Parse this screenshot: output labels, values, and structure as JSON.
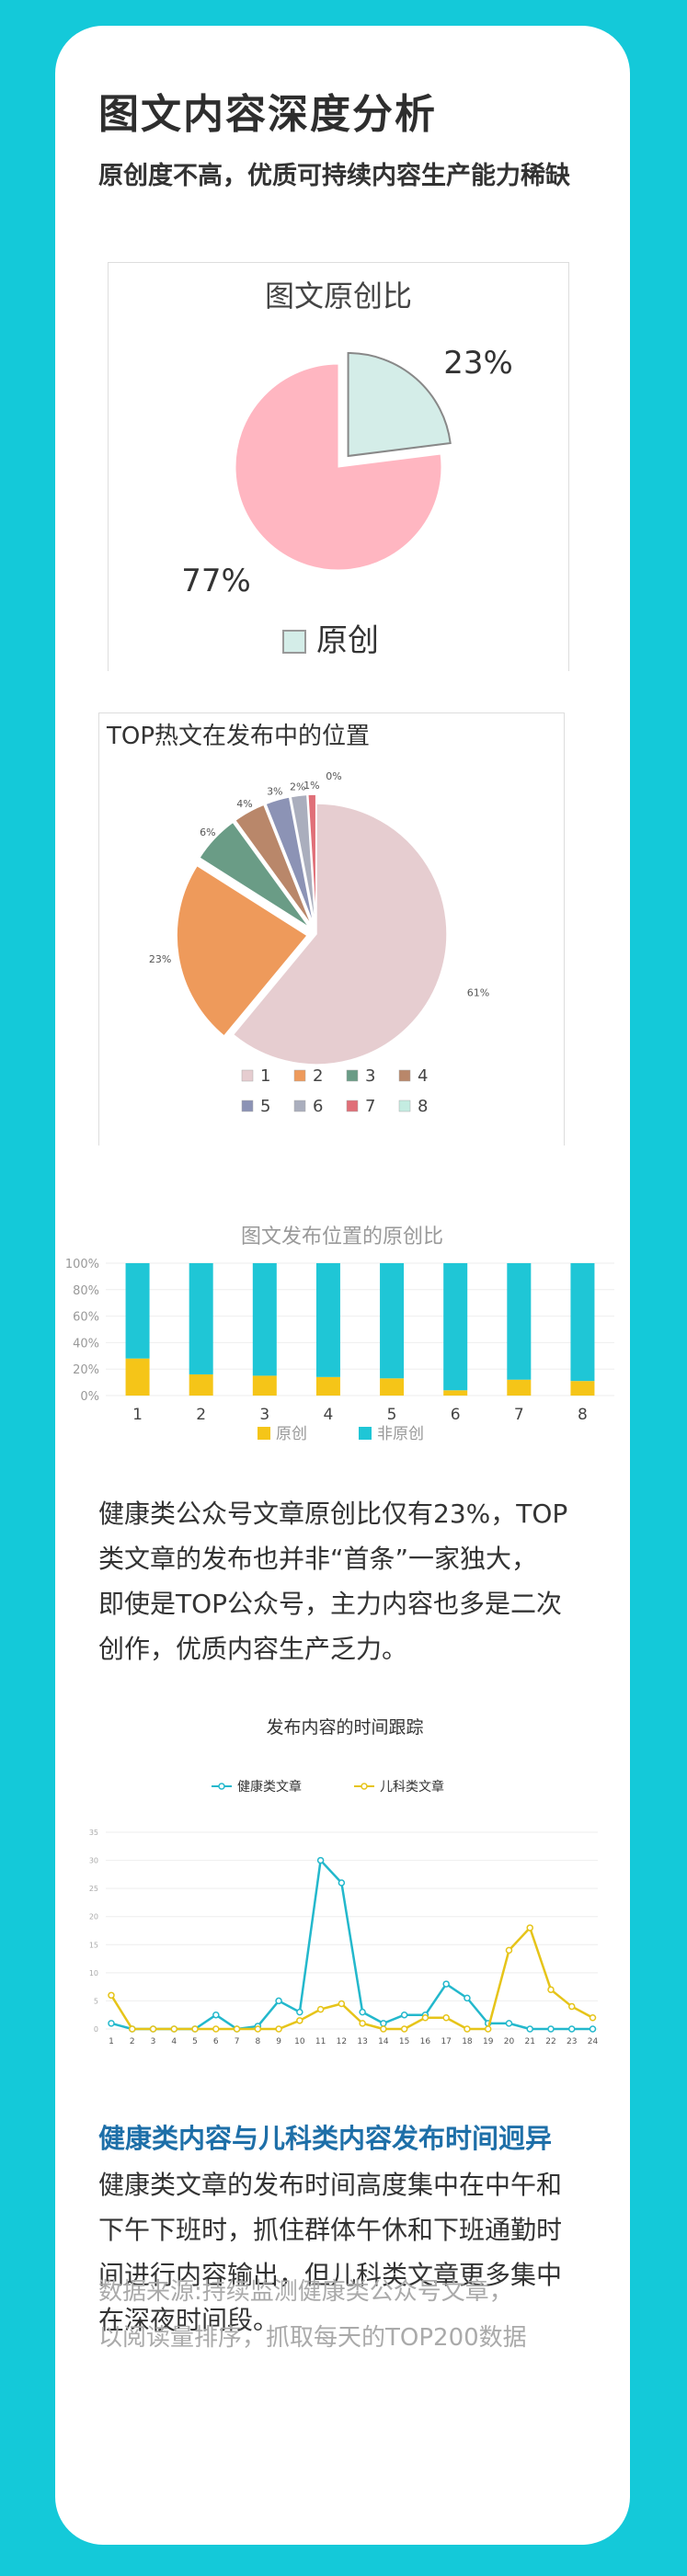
{
  "page": {
    "title": "图文内容深度分析",
    "subtitle": "原创度不高，优质可持续内容生产能力稀缺",
    "paragraph1": [
      "健康类公众号文章原创比仅有23%，TOP",
      "类文章的发布也并非“首条”一家独大，",
      "即使是TOP公众号，主力内容也多是二次",
      "创作，优质内容生产乏力。"
    ],
    "subheading": "健康类内容与儿科类内容发布时间迥异",
    "paragraph2": [
      "健康类文章的发布时间高度集中在中午和",
      "下午下班时，抓住群体午休和下班通勤时",
      "间进行内容输出，但儿科类文章更多集中",
      "在深夜时间段。"
    ],
    "source": [
      "数据来源:持续监测健康类公众号文章，",
      "以阅读量排序，抓取每天的TOP200数据"
    ]
  },
  "colors": {
    "background": "#14c9d9",
    "card": "#ffffff"
  },
  "chart_data": [
    {
      "type": "pie",
      "title": "图文原创比",
      "slices": [
        {
          "label": "原创",
          "value": 23,
          "display": "23%",
          "color": "#d4ede8"
        },
        {
          "label": "",
          "value": 77,
          "display": "77%",
          "color": "#ffb6c1"
        }
      ],
      "legend": [
        "原创"
      ]
    },
    {
      "type": "pie",
      "title": "TOP热文在发布中的位置",
      "slices": [
        {
          "label": "1",
          "value": 61,
          "display": "61%",
          "color": "#e6cdd0"
        },
        {
          "label": "2",
          "value": 23,
          "display": "23%",
          "color": "#ee9a5b"
        },
        {
          "label": "3",
          "value": 6,
          "display": "6%",
          "color": "#6a9c86"
        },
        {
          "label": "4",
          "value": 4,
          "display": "4%",
          "color": "#b9876a"
        },
        {
          "label": "5",
          "value": 3,
          "display": "3%",
          "color": "#8c93b5"
        },
        {
          "label": "6",
          "value": 2,
          "display": "2%",
          "color": "#aaaebd"
        },
        {
          "label": "7",
          "value": 1,
          "display": "1%",
          "color": "#e06f78"
        },
        {
          "label": "8",
          "value": 0,
          "display": "0%",
          "color": "#c4ece1"
        }
      ],
      "legend": [
        "1",
        "2",
        "3",
        "4",
        "5",
        "6",
        "7",
        "8"
      ]
    },
    {
      "type": "bar",
      "stacked": true,
      "title": "图文发布位置的原创比",
      "categories": [
        "1",
        "2",
        "3",
        "4",
        "5",
        "6",
        "7",
        "8"
      ],
      "yticks": [
        "0%",
        "20%",
        "40%",
        "60%",
        "80%",
        "100%"
      ],
      "ylim": [
        0,
        100
      ],
      "series": [
        {
          "name": "原创",
          "color": "#f5c518",
          "values": [
            28,
            16,
            15,
            14,
            13,
            4,
            12,
            11
          ]
        },
        {
          "name": "非原创",
          "color": "#1fc6d6",
          "values": [
            72,
            84,
            85,
            86,
            87,
            96,
            88,
            89
          ]
        }
      ],
      "legend": [
        "原创",
        "非原创"
      ]
    },
    {
      "type": "line",
      "title": "发布内容的时间跟踪",
      "x": [
        1,
        2,
        3,
        4,
        5,
        6,
        7,
        8,
        9,
        10,
        11,
        12,
        13,
        14,
        15,
        16,
        17,
        18,
        19,
        20,
        21,
        22,
        23,
        24
      ],
      "yticks": [
        "0",
        "5",
        "10",
        "15",
        "20",
        "25",
        "30",
        "35"
      ],
      "ylim": [
        0,
        35
      ],
      "series": [
        {
          "name": "健康类文章",
          "color": "#23b8cc",
          "values": [
            1,
            0,
            0,
            0,
            0,
            2.5,
            0,
            0.5,
            5,
            3,
            30,
            26,
            3,
            1,
            2.5,
            2.5,
            8,
            5.5,
            1,
            1,
            0,
            0,
            0,
            0
          ]
        },
        {
          "name": "儿科类文章",
          "color": "#e6c419",
          "values": [
            6,
            0,
            0,
            0,
            0,
            0,
            0,
            0,
            0,
            1.5,
            3.5,
            4.5,
            1,
            0,
            0,
            2,
            2,
            0,
            0,
            14,
            18,
            7,
            4,
            2
          ]
        }
      ],
      "legend": [
        "健康类文章",
        "儿科类文章"
      ]
    }
  ]
}
